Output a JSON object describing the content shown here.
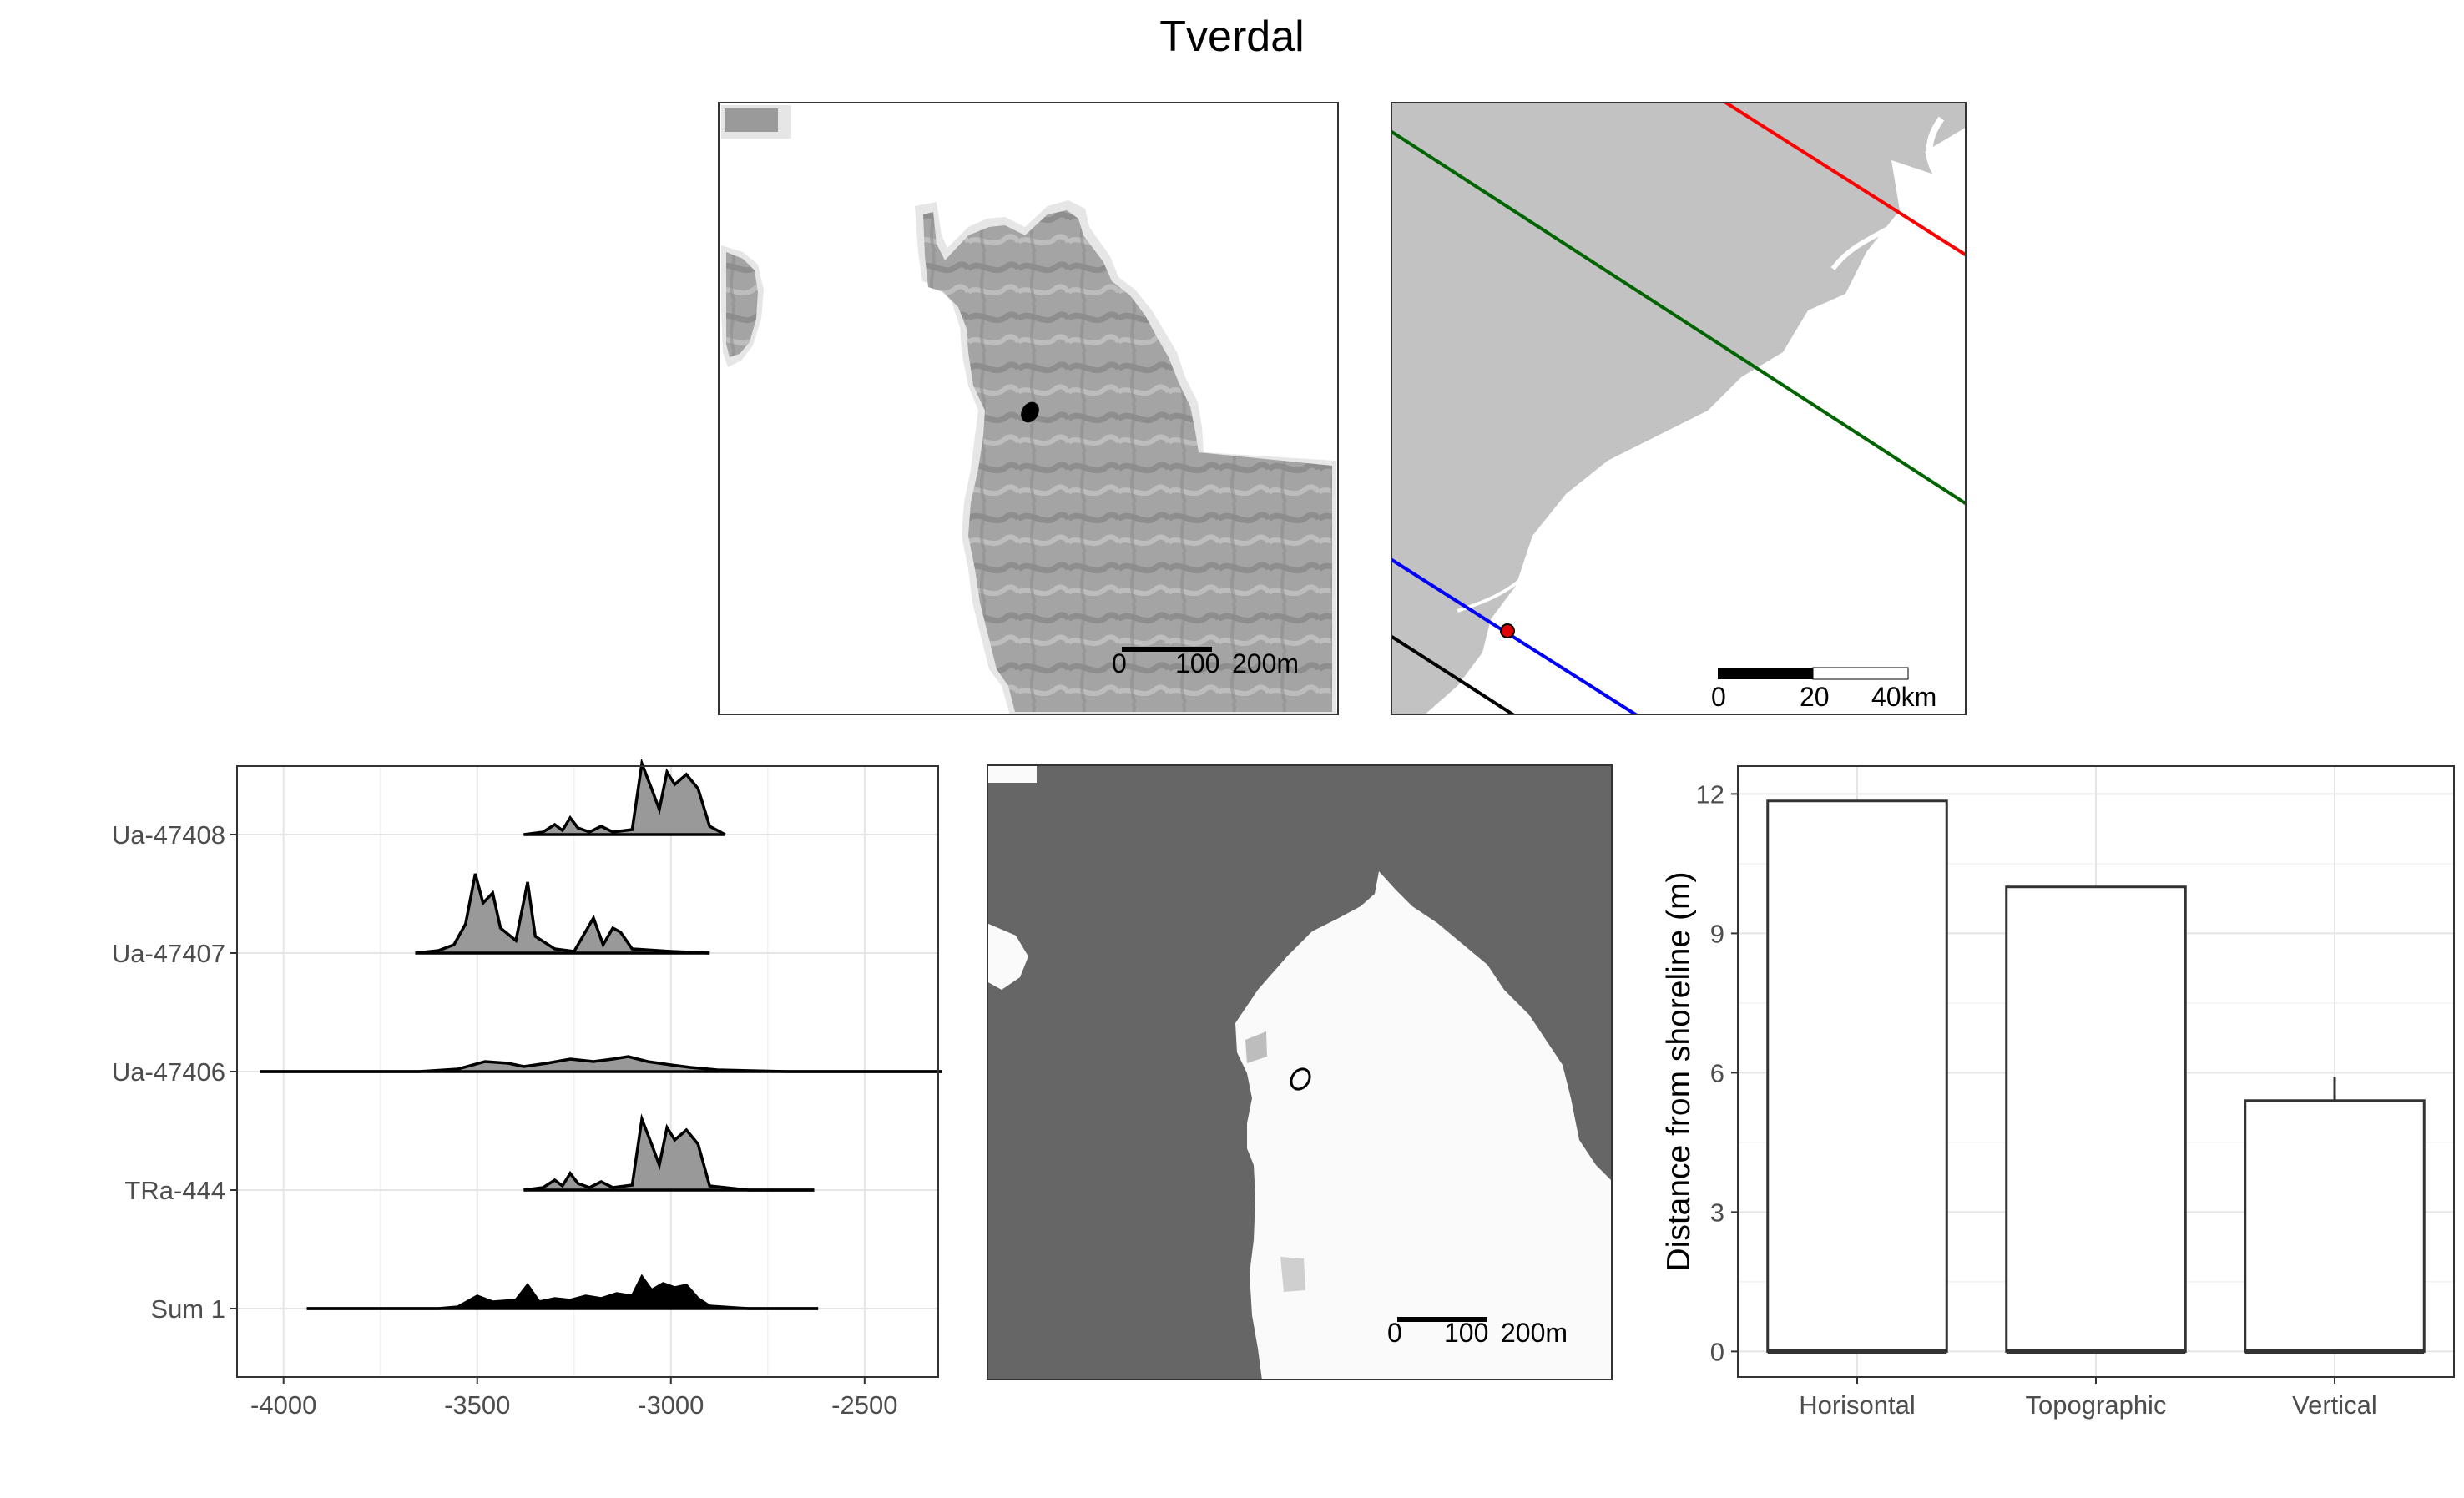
{
  "title": "Tverdal",
  "maps": {
    "dem": {
      "scale_labels": [
        "0",
        "100",
        "200m"
      ]
    },
    "regional": {
      "scale_labels": [
        "0",
        "20",
        "40km"
      ],
      "line_colors": [
        "#ff0000",
        "#006400",
        "#0000ff",
        "#000000"
      ],
      "site_color": "#e00000"
    },
    "sea_level": {
      "scale_labels": [
        "0",
        "100",
        "200m"
      ],
      "sea_color": "#666666",
      "land_color": "#fafafa"
    }
  },
  "chart_data": [
    {
      "type": "ridgeline",
      "categories": [
        "Ua-47408",
        "Ua-47407",
        "Ua-47406",
        "TRa-444",
        "Sum 1"
      ],
      "xlim": [
        -4120,
        -2310
      ],
      "xticks": [
        -4000,
        -3500,
        -3000,
        -2500
      ],
      "xticklabels": [
        "-4000",
        "-3500",
        "-3000",
        "-2500"
      ],
      "grid": true,
      "series": [
        {
          "label": "Ua-47408",
          "range": [
            -3380,
            -2860
          ],
          "fill": "#999999",
          "density": [
            [
              -3380,
              0
            ],
            [
              -3330,
              0.03
            ],
            [
              -3300,
              0.12
            ],
            [
              -3280,
              0.05
            ],
            [
              -3260,
              0.2
            ],
            [
              -3240,
              0.08
            ],
            [
              -3210,
              0.03
            ],
            [
              -3180,
              0.1
            ],
            [
              -3150,
              0.03
            ],
            [
              -3100,
              0.06
            ],
            [
              -3075,
              0.85
            ],
            [
              -3050,
              0.55
            ],
            [
              -3030,
              0.3
            ],
            [
              -3010,
              0.75
            ],
            [
              -2990,
              0.6
            ],
            [
              -2960,
              0.72
            ],
            [
              -2930,
              0.55
            ],
            [
              -2900,
              0.1
            ],
            [
              -2860,
              0
            ]
          ]
        },
        {
          "label": "Ua-47407",
          "range": [
            -3660,
            -2900
          ],
          "fill": "#999999",
          "density": [
            [
              -3660,
              0
            ],
            [
              -3600,
              0.03
            ],
            [
              -3560,
              0.1
            ],
            [
              -3530,
              0.35
            ],
            [
              -3505,
              0.95
            ],
            [
              -3485,
              0.6
            ],
            [
              -3460,
              0.72
            ],
            [
              -3440,
              0.3
            ],
            [
              -3400,
              0.15
            ],
            [
              -3370,
              0.85
            ],
            [
              -3350,
              0.2
            ],
            [
              -3300,
              0.05
            ],
            [
              -3250,
              0.02
            ],
            [
              -3200,
              0.42
            ],
            [
              -3175,
              0.1
            ],
            [
              -3150,
              0.3
            ],
            [
              -3130,
              0.25
            ],
            [
              -3100,
              0.05
            ],
            [
              -3000,
              0.02
            ],
            [
              -2900,
              0
            ]
          ]
        },
        {
          "label": "Ua-47406",
          "range": [
            -4060,
            -2300
          ],
          "fill": "#999999",
          "density": [
            [
              -4060,
              0
            ],
            [
              -3650,
              0
            ],
            [
              -3550,
              0.03
            ],
            [
              -3480,
              0.12
            ],
            [
              -3420,
              0.1
            ],
            [
              -3380,
              0.06
            ],
            [
              -3320,
              0.1
            ],
            [
              -3260,
              0.15
            ],
            [
              -3200,
              0.12
            ],
            [
              -3150,
              0.15
            ],
            [
              -3110,
              0.18
            ],
            [
              -3060,
              0.12
            ],
            [
              -3000,
              0.08
            ],
            [
              -2950,
              0.05
            ],
            [
              -2880,
              0.02
            ],
            [
              -2700,
              0
            ],
            [
              -2300,
              0
            ]
          ]
        },
        {
          "label": "TRa-444",
          "range": [
            -3380,
            -2630
          ],
          "fill": "#999999",
          "density": [
            [
              -3380,
              0
            ],
            [
              -3330,
              0.03
            ],
            [
              -3300,
              0.12
            ],
            [
              -3280,
              0.05
            ],
            [
              -3260,
              0.2
            ],
            [
              -3240,
              0.08
            ],
            [
              -3210,
              0.03
            ],
            [
              -3180,
              0.1
            ],
            [
              -3150,
              0.03
            ],
            [
              -3100,
              0.06
            ],
            [
              -3075,
              0.85
            ],
            [
              -3050,
              0.55
            ],
            [
              -3030,
              0.3
            ],
            [
              -3010,
              0.75
            ],
            [
              -2990,
              0.6
            ],
            [
              -2960,
              0.72
            ],
            [
              -2930,
              0.55
            ],
            [
              -2900,
              0.05
            ],
            [
              -2800,
              0
            ],
            [
              -2630,
              0
            ]
          ]
        },
        {
          "label": "Sum 1",
          "range": [
            -3940,
            -2620
          ],
          "fill": "#000000",
          "density": [
            [
              -3940,
              0
            ],
            [
              -3600,
              0
            ],
            [
              -3550,
              0.02
            ],
            [
              -3500,
              0.15
            ],
            [
              -3460,
              0.08
            ],
            [
              -3400,
              0.1
            ],
            [
              -3370,
              0.28
            ],
            [
              -3340,
              0.08
            ],
            [
              -3300,
              0.12
            ],
            [
              -3260,
              0.1
            ],
            [
              -3220,
              0.15
            ],
            [
              -3180,
              0.12
            ],
            [
              -3140,
              0.18
            ],
            [
              -3100,
              0.15
            ],
            [
              -3075,
              0.38
            ],
            [
              -3050,
              0.22
            ],
            [
              -3020,
              0.3
            ],
            [
              -2990,
              0.25
            ],
            [
              -2960,
              0.28
            ],
            [
              -2930,
              0.12
            ],
            [
              -2900,
              0.03
            ],
            [
              -2800,
              0
            ],
            [
              -2620,
              0
            ]
          ]
        }
      ]
    },
    {
      "type": "boxplot",
      "ylabel": "Distance from shoreline (m)",
      "ylim": [
        -0.55,
        12.6
      ],
      "yticks": [
        0,
        3,
        6,
        9,
        12
      ],
      "yticklabels": [
        "0",
        "3",
        "6",
        "9",
        "12"
      ],
      "grid": true,
      "categories": [
        "Horisontal",
        "Topographic",
        "Vertical"
      ],
      "boxes": [
        {
          "label": "Horisontal",
          "q1": 0,
          "median": 0,
          "q3": 11.85,
          "whisker_low": 0,
          "whisker_high": 11.85
        },
        {
          "label": "Topographic",
          "q1": 0,
          "median": 0,
          "q3": 10.0,
          "whisker_low": 0,
          "whisker_high": 10.0
        },
        {
          "label": "Vertical",
          "q1": 0,
          "median": 0,
          "q3": 5.4,
          "whisker_low": 0,
          "whisker_high": 5.9
        }
      ]
    }
  ]
}
